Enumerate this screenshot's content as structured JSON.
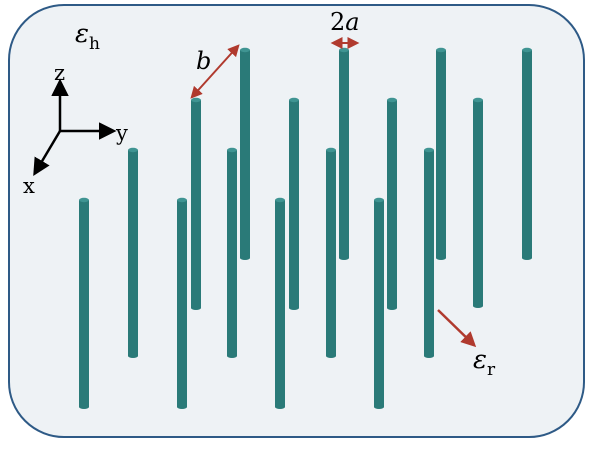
{
  "labels": {
    "host_epsilon": "ε",
    "host_sub": "h",
    "rod_epsilon": "ε",
    "rod_sub": "r",
    "spacing": "b",
    "diameter_num": "2",
    "diameter_var": "a"
  },
  "axes": {
    "z": "z",
    "y": "y",
    "x": "x"
  },
  "colors": {
    "host_fill": "#eef2f5",
    "host_border": "#2e5a86",
    "rod": "#2a7a78",
    "rod_top": "#3f9492",
    "arrow": "#b03a2e",
    "axis": "#000000"
  }
}
